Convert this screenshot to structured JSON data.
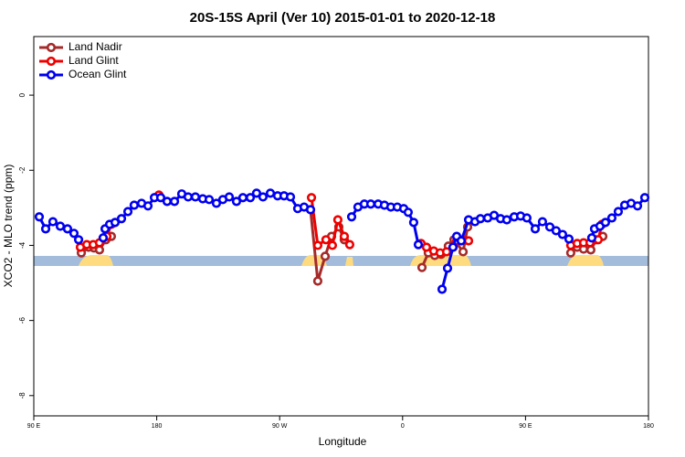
{
  "chart_data": {
    "type": "line",
    "title": "20S-15S April (Ver 10)   2015-01-01 to 2020-12-18",
    "xlabel": "Longitude",
    "ylabel": "XCO2 - MLO trend (ppm)",
    "xlim": [
      90,
      540
    ],
    "ylim": [
      -8.54,
      1.56
    ],
    "xticks": [
      {
        "value": 90,
        "label": "90 E"
      },
      180,
      {
        "value": 270,
        "label": "90 W"
      },
      {
        "value": 360,
        "label": "0"
      },
      {
        "value": 450,
        "label": "90 E"
      },
      {
        "value": 540,
        "label": "180"
      }
    ],
    "yticks": [
      -8,
      -6,
      -4,
      -2,
      0
    ],
    "grid": false,
    "legend": "top-left",
    "series": [
      {
        "name": "Land Nadir",
        "color": "#a52a2a",
        "x": [
          124.8,
          130.1,
          134.1,
          138.1,
          142.8,
          146.8,
          200,
          292.6,
          297.9,
          303.3,
          308.0,
          313.3,
          317.3,
          340,
          374.2,
          378.8,
          383.5,
          388.2,
          393.5,
          397.6,
          404.3,
          407.6,
          450,
          483.1,
          487.8,
          492.5,
          497.8,
          501.9,
          506.6
        ],
        "values": [
          -4.2,
          -4.05,
          -4.07,
          -4.12,
          -3.85,
          -3.76,
          null,
          -3.05,
          -4.95,
          -4.29,
          -3.76,
          -3.51,
          -3.85,
          null,
          -4.59,
          -4.2,
          -4.27,
          -4.24,
          -4.02,
          -3.85,
          -4.17,
          -3.51,
          null,
          -4.2,
          -4.05,
          -4.1,
          -4.12,
          -3.85,
          -3.76
        ]
      },
      {
        "name": "Land Glint",
        "color": "#ee0000",
        "x": [
          124.1,
          128.8,
          133.5,
          138.1,
          143.5,
          146.8,
          160,
          181.6,
          250,
          293.3,
          297.9,
          303.9,
          308.6,
          312.6,
          317.3,
          321.3,
          340,
          373.5,
          377.5,
          382.8,
          387.5,
          392.2,
          396.9,
          399.6,
          404.3,
          408.3,
          450,
          483.1,
          487.8,
          492.5,
          497.2,
          503.2,
          505.9
        ],
        "values": [
          -4.05,
          -3.98,
          -3.98,
          -3.93,
          -3.76,
          -3.44,
          null,
          -2.66,
          null,
          -2.73,
          -4.0,
          -3.85,
          -4.0,
          -3.32,
          -3.76,
          -3.98,
          null,
          -3.95,
          -4.05,
          -4.15,
          -4.2,
          -4.17,
          -4.05,
          -3.88,
          -3.85,
          -3.88,
          null,
          -4.0,
          -3.95,
          -3.93,
          -3.93,
          -3.85,
          -3.44
        ]
      },
      {
        "name": "Ocean Glint",
        "color": "#0000ee",
        "x": [
          94.0,
          98.7,
          104.0,
          109.4,
          114.7,
          119.4,
          122.8,
          130,
          140.8,
          142.2,
          145.5,
          149.5,
          154.2,
          158.9,
          163.5,
          168.9,
          173.6,
          178.3,
          182.9,
          187.6,
          193.0,
          198.3,
          203.0,
          208.3,
          213.7,
          218.4,
          223.7,
          228.4,
          233.1,
          238.4,
          243.1,
          248.5,
          253.1,
          257.8,
          263.2,
          268.5,
          273.2,
          277.9,
          283.2,
          287.9,
          292.6,
          320,
          322.7,
          327.3,
          332.0,
          336.7,
          342.1,
          346.7,
          351.4,
          356.1,
          360.8,
          364.1,
          368.1,
          371.5,
          380,
          388.9,
          392.9,
          396.9,
          399.6,
          402.9,
          408.3,
          413.0,
          417.0,
          422.3,
          427.0,
          431.7,
          436.3,
          441.7,
          446.4,
          451.0,
          457.1,
          462.4,
          467.8,
          472.4,
          477.1,
          481.8,
          490,
          498.5,
          500.5,
          504.5,
          508.5,
          513.2,
          517.9,
          522.6,
          527.3,
          532.0,
          537.3
        ],
        "values": [
          -3.24,
          -3.56,
          -3.37,
          -3.49,
          -3.56,
          -3.68,
          -3.85,
          null,
          -3.8,
          -3.56,
          -3.44,
          -3.39,
          -3.29,
          -3.1,
          -2.93,
          -2.88,
          -2.95,
          -2.73,
          -2.73,
          -2.83,
          -2.83,
          -2.63,
          -2.71,
          -2.71,
          -2.76,
          -2.78,
          -2.88,
          -2.78,
          -2.71,
          -2.83,
          -2.73,
          -2.73,
          -2.61,
          -2.71,
          -2.61,
          -2.68,
          -2.68,
          -2.71,
          -3.02,
          -2.98,
          -3.05,
          null,
          -3.24,
          -2.98,
          -2.9,
          -2.9,
          -2.9,
          -2.93,
          -2.98,
          -2.98,
          -3.02,
          -3.12,
          -3.39,
          -3.98,
          null,
          -5.17,
          -4.61,
          -4.05,
          -3.76,
          -3.88,
          -3.32,
          -3.37,
          -3.29,
          -3.27,
          -3.2,
          -3.29,
          -3.32,
          -3.24,
          -3.22,
          -3.27,
          -3.56,
          -3.37,
          -3.51,
          -3.61,
          -3.71,
          -3.83,
          null,
          -3.8,
          -3.56,
          -3.49,
          -3.39,
          -3.27,
          -3.1,
          -2.93,
          -2.88,
          -2.95,
          -2.73
        ]
      }
    ]
  }
}
